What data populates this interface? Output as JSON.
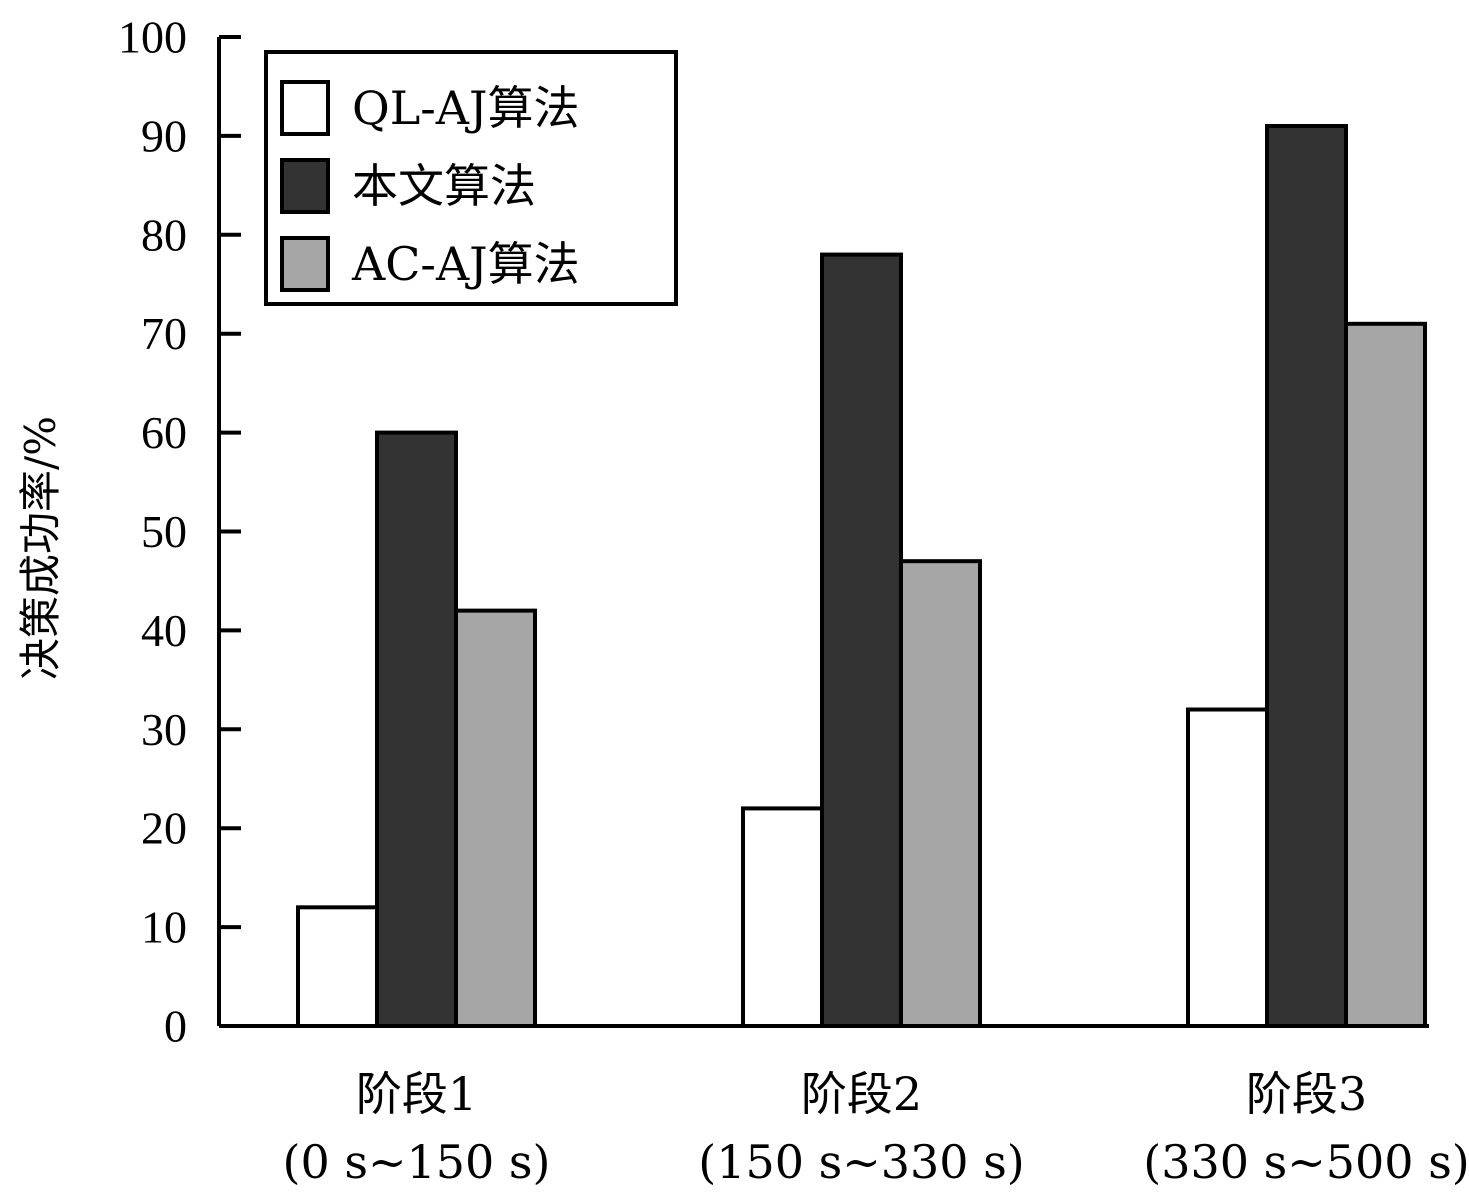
{
  "chart_data": {
    "type": "bar",
    "ylabel": "决策成功率/%",
    "ylim": [
      0,
      100
    ],
    "yticks": [
      0,
      10,
      20,
      30,
      40,
      50,
      60,
      70,
      80,
      90,
      100
    ],
    "grid": false,
    "legend_position": "top-left",
    "categories": [
      {
        "name": "阶段1",
        "range": "(0 s~150 s)"
      },
      {
        "name": "阶段2",
        "range": "(150 s~330 s)"
      },
      {
        "name": "阶段3",
        "range": "(330 s~500 s)"
      }
    ],
    "series": [
      {
        "name": "QL-AJ算法",
        "color": "#ffffff",
        "values": [
          12,
          22,
          32
        ]
      },
      {
        "name": "本文算法",
        "color": "#333333",
        "values": [
          60,
          78,
          91
        ]
      },
      {
        "name": "AC-AJ算法",
        "color": "#a6a6a6",
        "values": [
          42,
          47,
          71
        ]
      }
    ]
  }
}
